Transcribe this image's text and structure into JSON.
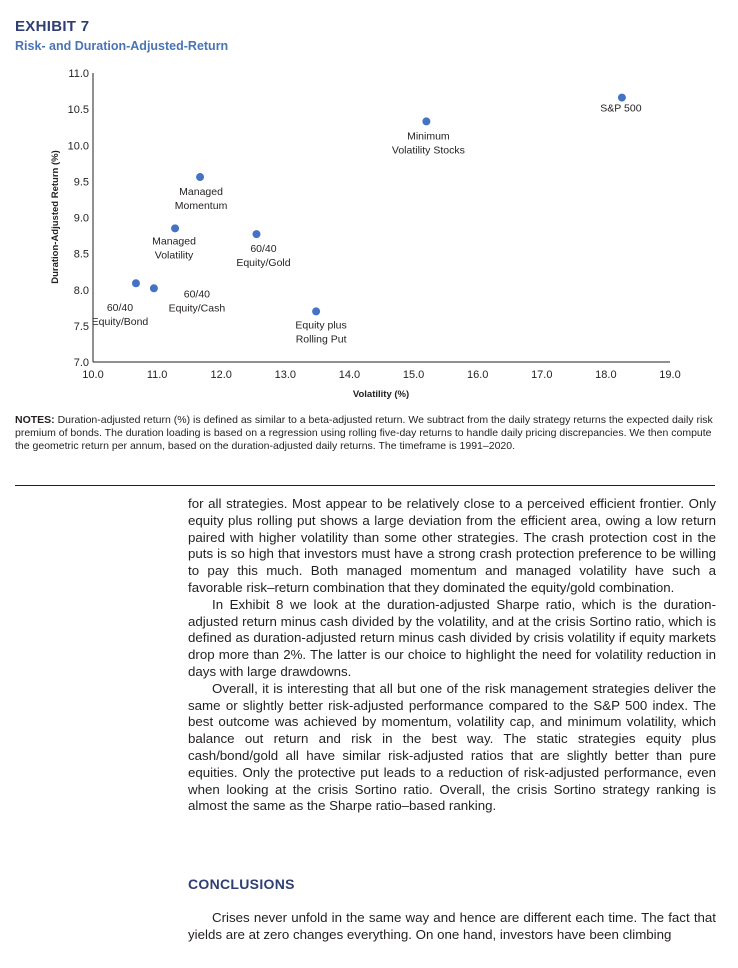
{
  "exhibit": {
    "label": "EXHIBIT 7",
    "title": "Risk- and Duration-Adjusted-Return"
  },
  "chart_data": {
    "type": "scatter",
    "xlabel": "Volatility (%)",
    "ylabel": "Duration-Adjusted Return (%)",
    "xlim": [
      10.0,
      19.0
    ],
    "ylim": [
      7.0,
      11.0
    ],
    "x_ticks": [
      "10.0",
      "11.0",
      "12.0",
      "13.0",
      "14.0",
      "15.0",
      "16.0",
      "17.0",
      "18.0",
      "19.0"
    ],
    "y_ticks": [
      "7.0",
      "7.5",
      "8.0",
      "8.5",
      "9.0",
      "9.5",
      "10.0",
      "10.5",
      "11.0"
    ],
    "grid": false,
    "point_color": "#4472c4",
    "points": [
      {
        "label_lines": [
          "S&P 500"
        ],
        "x": 18.25,
        "y": 10.66
      },
      {
        "label_lines": [
          "Minimum",
          "Volatility Stocks"
        ],
        "x": 15.2,
        "y": 10.33
      },
      {
        "label_lines": [
          "Managed",
          "Momentum"
        ],
        "x": 11.67,
        "y": 9.56
      },
      {
        "label_lines": [
          "Managed",
          "Volatility"
        ],
        "x": 11.28,
        "y": 8.85
      },
      {
        "label_lines": [
          "60/40",
          "Equity/Gold"
        ],
        "x": 12.55,
        "y": 8.77
      },
      {
        "label_lines": [
          "60/40",
          "Equity/Bond"
        ],
        "x": 10.67,
        "y": 8.09
      },
      {
        "label_lines": [
          "60/40",
          "Equity/Cash"
        ],
        "x": 10.95,
        "y": 8.02
      },
      {
        "label_lines": [
          "Equity plus",
          "Rolling Put"
        ],
        "x": 13.48,
        "y": 7.7
      }
    ]
  },
  "notes": {
    "label": "NOTES:",
    "text": " Duration-adjusted return (%) is defined as similar to a beta-adjusted return. We subtract from the daily strategy returns the expected daily risk premium of bonds. The duration loading is based on a regression using rolling five-day returns to handle daily pricing discrepancies. We then compute the geometric return per annum, based on the duration-adjusted daily returns. The timeframe is 1991–2020."
  },
  "body": {
    "paragraphs": [
      "for all strategies. Most appear to be relatively close to a perceived efficient frontier. Only equity plus rolling put shows a large deviation from the efficient area, owing a low return paired with higher volatility than some other strategies. The crash protection cost in the puts is so high that investors must have a strong crash protection preference to be willing to pay this much. Both managed momentum and managed volatility have such a favorable risk–return combination that they dominated the equity/gold combination.",
      "In Exhibit 8 we look at the duration-adjusted Sharpe ratio, which is the duration-adjusted return minus cash divided by the volatility, and at the crisis Sortino ratio, which is defined as duration-adjusted return minus cash divided by crisis volatility if equity markets drop more than 2%. The latter is our choice to highlight the need for volatility reduction in days with large drawdowns.",
      "Overall, it is interesting that all but one of the risk management strategies deliver the same or slightly better risk-adjusted performance compared to the S&P 500 index. The best outcome was achieved by momentum, volatility cap, and minimum volatility, which balance out return and risk in the best way. The static strategies equity plus cash/bond/gold all have similar risk-adjusted ratios that are slightly better than pure equities. Only the protective put leads to a reduction of risk-adjusted performance, even when looking at the crisis Sortino ratio. Overall, the crisis Sortino strategy ranking is almost the same as the Sharpe ratio–based ranking."
    ]
  },
  "conclusions": {
    "heading": "CONCLUSIONS",
    "text": "Crises never unfold in the same way and hence are different each time. The fact that yields are at zero changes everything. On one hand, investors have been climbing"
  }
}
